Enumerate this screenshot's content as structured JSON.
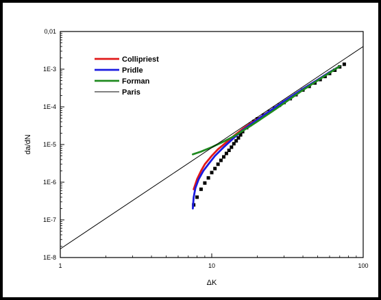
{
  "chart_data": {
    "type": "line",
    "xlabel": "ΔK",
    "ylabel": "da/dN",
    "x_scale": "log",
    "y_scale": "log",
    "xlim": [
      1,
      100
    ],
    "ylim": [
      1e-08,
      0.01
    ],
    "x_ticks": [
      {
        "value": 1,
        "label": "1"
      },
      {
        "value": 10,
        "label": "10"
      },
      {
        "value": 100,
        "label": "100"
      }
    ],
    "y_ticks": [
      {
        "value": 0.01,
        "label": "0,01"
      },
      {
        "value": 0.001,
        "label": "1E-3"
      },
      {
        "value": 0.0001,
        "label": "1E-4"
      },
      {
        "value": 1e-05,
        "label": "1E-5"
      },
      {
        "value": 1e-06,
        "label": "1E-6"
      },
      {
        "value": 1e-07,
        "label": "1E-7"
      },
      {
        "value": 1e-08,
        "label": "1E-8"
      }
    ],
    "grid": false,
    "legend_position": "top-left",
    "series": [
      {
        "name": "Collipriest",
        "color": "#e01818",
        "points": [
          [
            7.6,
            6.5e-07
          ],
          [
            8.0,
            1.2e-06
          ],
          [
            8.5,
            2e-06
          ],
          [
            9.0,
            3e-06
          ],
          [
            10,
            5e-06
          ],
          [
            11,
            7.5e-06
          ],
          [
            12.5,
            1.15e-05
          ],
          [
            14,
            1.7e-05
          ],
          [
            16,
            2.6e-05
          ],
          [
            18,
            3.6e-05
          ],
          [
            20,
            4.7e-05
          ],
          [
            25,
            8.5e-05
          ],
          [
            30,
            0.00014
          ],
          [
            40,
            0.0003
          ],
          [
            50,
            0.00052
          ],
          [
            60,
            0.00083
          ],
          [
            70,
            0.0012
          ]
        ]
      },
      {
        "name": "Pridle",
        "color": "#1a1ae0",
        "points": [
          [
            7.5,
            2e-07
          ],
          [
            7.6,
            4e-07
          ],
          [
            7.8,
            7e-07
          ],
          [
            8.2,
            1.2e-06
          ],
          [
            8.8,
            2e-06
          ],
          [
            9.5,
            3e-06
          ],
          [
            10.5,
            5e-06
          ],
          [
            12,
            8.5e-06
          ],
          [
            14,
            1.5e-05
          ],
          [
            16,
            2.4e-05
          ],
          [
            18,
            3.4e-05
          ],
          [
            20,
            4.6e-05
          ],
          [
            25,
            8.5e-05
          ],
          [
            30,
            0.00014
          ],
          [
            40,
            0.0003
          ],
          [
            50,
            0.00052
          ],
          [
            60,
            0.00083
          ],
          [
            70,
            0.0012
          ]
        ]
      },
      {
        "name": "Forman",
        "color": "#1f8a1f",
        "points": [
          [
            7.5,
            5.5e-06
          ],
          [
            8.5,
            6.5e-06
          ],
          [
            10,
            8.5e-06
          ],
          [
            12,
            1.2e-05
          ],
          [
            14,
            1.65e-05
          ],
          [
            16,
            2.3e-05
          ],
          [
            18,
            3.1e-05
          ],
          [
            20,
            4.1e-05
          ],
          [
            25,
            7.5e-05
          ],
          [
            30,
            0.000125
          ],
          [
            40,
            0.00028
          ],
          [
            50,
            0.0005
          ],
          [
            60,
            0.0008
          ],
          [
            70,
            0.0012
          ]
        ]
      },
      {
        "name": "Paris",
        "color": "#000000",
        "points": [
          [
            1,
            1.7e-08
          ],
          [
            100,
            0.004
          ]
        ]
      },
      {
        "name": "",
        "style": "markers",
        "color": "#000000",
        "points": [
          [
            7.6,
            2.5e-07
          ],
          [
            8.0,
            4e-07
          ],
          [
            8.5,
            6.5e-07
          ],
          [
            9.0,
            9.5e-07
          ],
          [
            9.5,
            1.3e-06
          ],
          [
            10,
            1.8e-06
          ],
          [
            10.5,
            2.3e-06
          ],
          [
            11,
            3e-06
          ],
          [
            11.5,
            3.8e-06
          ],
          [
            12,
            4.7e-06
          ],
          [
            12.5,
            5.8e-06
          ],
          [
            13,
            7e-06
          ],
          [
            13.5,
            8.5e-06
          ],
          [
            14,
            1.05e-05
          ],
          [
            14.5,
            1.25e-05
          ],
          [
            15,
            1.5e-05
          ],
          [
            15.5,
            1.8e-05
          ],
          [
            16,
            2.2e-05
          ],
          [
            17,
            2.8e-05
          ],
          [
            18,
            3.4e-05
          ],
          [
            19,
            4.1e-05
          ],
          [
            20,
            4.8e-05
          ],
          [
            22,
            6e-05
          ],
          [
            24,
            7.5e-05
          ],
          [
            26,
            9.2e-05
          ],
          [
            28,
            0.00011
          ],
          [
            30,
            0.00013
          ],
          [
            33,
            0.000165
          ],
          [
            36,
            0.00021
          ],
          [
            40,
            0.00028
          ],
          [
            44,
            0.00035
          ],
          [
            48,
            0.00043
          ],
          [
            52,
            0.00053
          ],
          [
            56,
            0.00064
          ],
          [
            60,
            0.00077
          ],
          [
            65,
            0.00094
          ],
          [
            70,
            0.00115
          ],
          [
            75,
            0.00135
          ]
        ]
      }
    ]
  }
}
